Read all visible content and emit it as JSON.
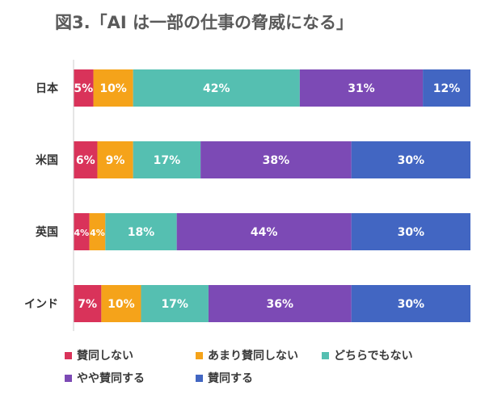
{
  "title": "図3.「AI は一部の仕事の脅威になる」",
  "chart_data": {
    "type": "bar",
    "orientation": "horizontal",
    "stacked": true,
    "unit": "%",
    "categories": [
      "日本",
      "米国",
      "英国",
      "インド"
    ],
    "series": [
      {
        "name": "賛同しない",
        "color": "#d9335a",
        "values": [
          5,
          6,
          4,
          7
        ]
      },
      {
        "name": "あまり賛同しない",
        "color": "#f5a31a",
        "values": [
          10,
          9,
          4,
          10
        ]
      },
      {
        "name": "どちらでもない",
        "color": "#55bfb1",
        "values": [
          42,
          17,
          18,
          17
        ]
      },
      {
        "name": "やや賛同する",
        "color": "#7c4ab5",
        "values": [
          31,
          38,
          44,
          36
        ]
      },
      {
        "name": "賛同する",
        "color": "#4266c2",
        "values": [
          12,
          30,
          30,
          30
        ]
      }
    ],
    "legend_position": "bottom"
  }
}
